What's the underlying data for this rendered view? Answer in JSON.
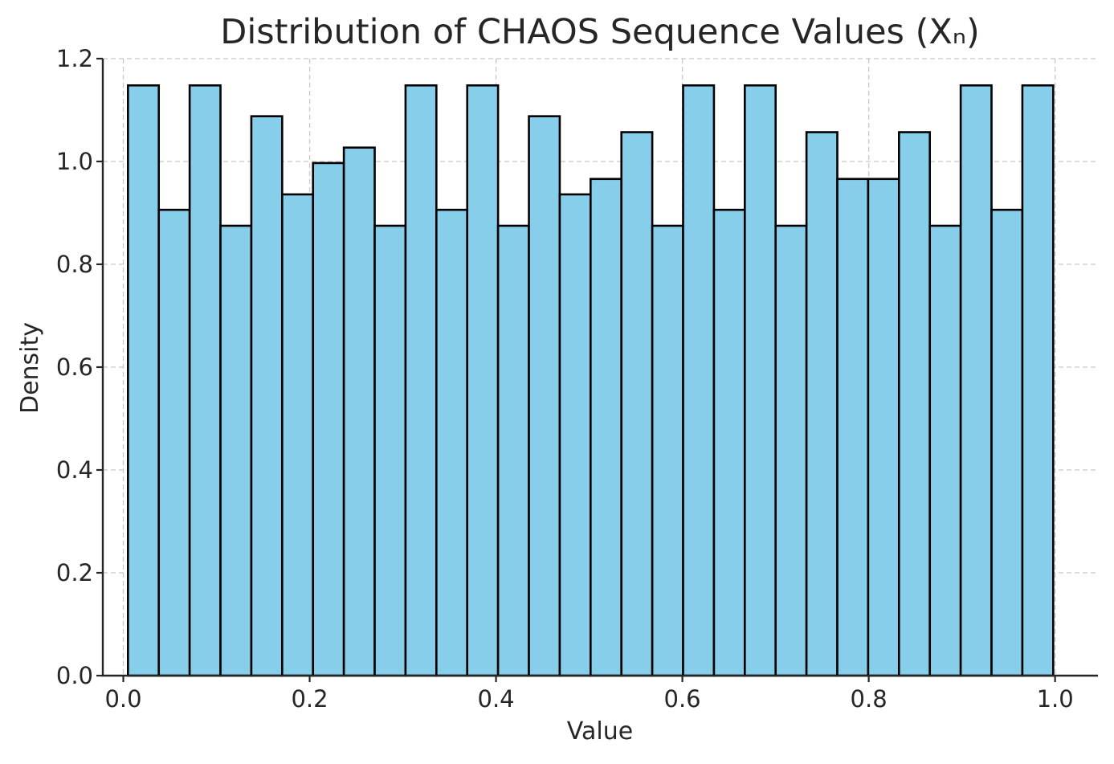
{
  "chart_data": {
    "type": "bar",
    "title": "Distribution of CHAOS Sequence Values (Xₙ)",
    "xlabel": "Value",
    "ylabel": "Density",
    "xlim": [
      -0.022,
      1.046
    ],
    "ylim": [
      0,
      1.2
    ],
    "xticks": [
      {
        "value": 0.0,
        "label": "0.0"
      },
      {
        "value": 0.2,
        "label": "0.2"
      },
      {
        "value": 0.4,
        "label": "0.4"
      },
      {
        "value": 0.6,
        "label": "0.6"
      },
      {
        "value": 0.8,
        "label": "0.8"
      },
      {
        "value": 1.0,
        "label": "1.0"
      }
    ],
    "yticks": [
      {
        "value": 0.0,
        "label": "0.0"
      },
      {
        "value": 0.2,
        "label": "0.2"
      },
      {
        "value": 0.4,
        "label": "0.4"
      },
      {
        "value": 0.6,
        "label": "0.6"
      },
      {
        "value": 0.8,
        "label": "0.8"
      },
      {
        "value": 1.0,
        "label": "1.0"
      },
      {
        "value": 1.2,
        "label": "1.2"
      }
    ],
    "grid": true,
    "bin_start": 0.005,
    "bin_end": 0.998,
    "values": [
      1.148,
      0.906,
      1.148,
      0.875,
      1.088,
      0.936,
      0.997,
      1.027,
      0.875,
      1.148,
      0.906,
      1.148,
      0.875,
      1.088,
      0.936,
      0.966,
      1.057,
      0.875,
      1.148,
      0.906,
      1.148,
      0.875,
      1.057,
      0.966,
      0.966,
      1.057,
      0.875,
      1.148,
      0.906,
      1.148
    ],
    "colors": {
      "bar_fill": "#87ceeb",
      "bar_edge": "#000000",
      "grid": "#c8c8c8",
      "axis": "#262626"
    }
  }
}
